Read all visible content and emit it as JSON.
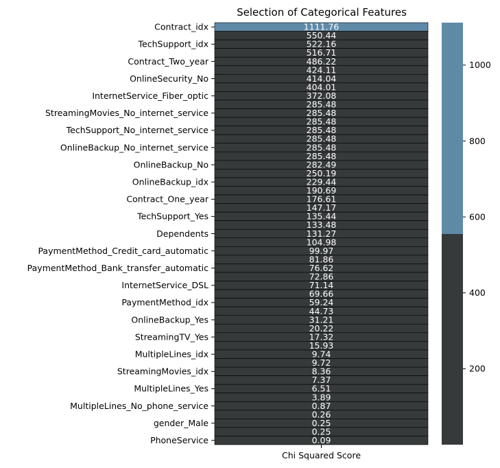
{
  "chart_data": {
    "type": "heatmap",
    "title": "Selection of Categorical Features",
    "xlabel": "Chi Squared Score",
    "column_labels": [
      "Chi Squared Score"
    ],
    "rows": [
      {
        "label": "Contract_idx",
        "value": 1111.76
      },
      {
        "label": "",
        "value": 550.44
      },
      {
        "label": "TechSupport_idx",
        "value": 522.16
      },
      {
        "label": "",
        "value": 516.71
      },
      {
        "label": "Contract_Two_year",
        "value": 486.22
      },
      {
        "label": "",
        "value": 424.11
      },
      {
        "label": "OnlineSecurity_No",
        "value": 414.04
      },
      {
        "label": "",
        "value": 404.01
      },
      {
        "label": "InternetService_Fiber_optic",
        "value": 372.08
      },
      {
        "label": "",
        "value": 285.48
      },
      {
        "label": "StreamingMovies_No_internet_service",
        "value": 285.48
      },
      {
        "label": "",
        "value": 285.48
      },
      {
        "label": "TechSupport_No_internet_service",
        "value": 285.48
      },
      {
        "label": "",
        "value": 285.48
      },
      {
        "label": "OnlineBackup_No_internet_service",
        "value": 285.48
      },
      {
        "label": "",
        "value": 285.48
      },
      {
        "label": "OnlineBackup_No",
        "value": 282.49
      },
      {
        "label": "",
        "value": 250.19
      },
      {
        "label": "OnlineBackup_idx",
        "value": 229.44
      },
      {
        "label": "",
        "value": 190.69
      },
      {
        "label": "Contract_One_year",
        "value": 176.61
      },
      {
        "label": "",
        "value": 147.17
      },
      {
        "label": "TechSupport_Yes",
        "value": 135.44
      },
      {
        "label": "",
        "value": 133.48
      },
      {
        "label": "Dependents",
        "value": 131.27
      },
      {
        "label": "",
        "value": 104.98
      },
      {
        "label": "PaymentMethod_Credit_card_automatic",
        "value": 99.97
      },
      {
        "label": "",
        "value": 81.86
      },
      {
        "label": "PaymentMethod_Bank_transfer_automatic",
        "value": 76.62
      },
      {
        "label": "",
        "value": 72.86
      },
      {
        "label": "InternetService_DSL",
        "value": 71.14
      },
      {
        "label": "",
        "value": 69.66
      },
      {
        "label": "PaymentMethod_idx",
        "value": 59.24
      },
      {
        "label": "",
        "value": 44.73
      },
      {
        "label": "OnlineBackup_Yes",
        "value": 31.21
      },
      {
        "label": "",
        "value": 20.22
      },
      {
        "label": "StreamingTV_Yes",
        "value": 17.32
      },
      {
        "label": "",
        "value": 15.93
      },
      {
        "label": "MultipleLines_idx",
        "value": 9.74
      },
      {
        "label": "",
        "value": 9.72
      },
      {
        "label": "StreamingMovies_idx",
        "value": 8.36
      },
      {
        "label": "",
        "value": 7.37
      },
      {
        "label": "MultipleLines_Yes",
        "value": 6.51
      },
      {
        "label": "",
        "value": 3.89
      },
      {
        "label": "MultipleLines_No_phone_service",
        "value": 0.87
      },
      {
        "label": "",
        "value": 0.26
      },
      {
        "label": "gender_Male",
        "value": 0.25
      },
      {
        "label": "",
        "value": 0.25
      },
      {
        "label": "PhoneService",
        "value": 0.09
      }
    ],
    "colorbar": {
      "ticks": [
        200,
        400,
        600,
        800,
        1000
      ],
      "range": [
        0.09,
        1111.76
      ],
      "threshold": 555,
      "low_color": "#363a3b",
      "high_color": "#5e8aa8"
    },
    "grid": false,
    "legend": "colorbar-right"
  }
}
